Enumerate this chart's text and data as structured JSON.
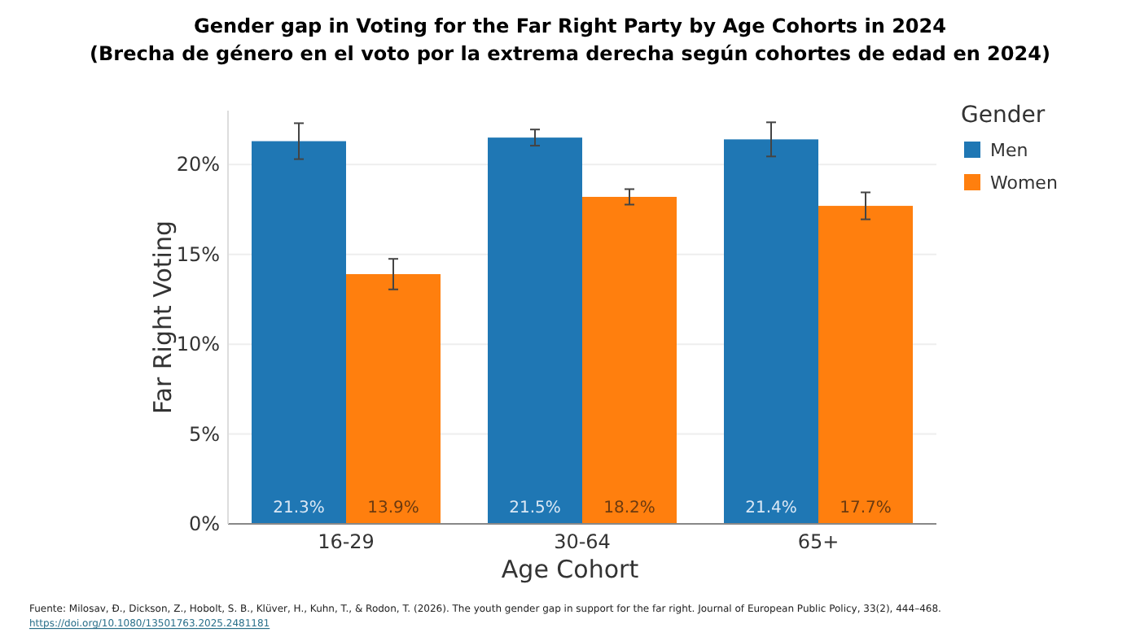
{
  "chart_data": {
    "type": "bar",
    "title": "Gender gap in Voting for the Far Right Party by Age Cohorts in 2024",
    "subtitle": "(Brecha de género en el voto por la extrema derecha según cohortes de edad en 2024)",
    "xlabel": "Age Cohort",
    "ylabel": "Far Right Voting",
    "legend_title": "Gender",
    "categories": [
      "16-29",
      "30-64",
      "65+"
    ],
    "series": [
      {
        "name": "Men",
        "color": "#1f77b4",
        "values": [
          21.3,
          21.5,
          21.4
        ],
        "value_labels": [
          "21.3%",
          "21.5%",
          "21.4%"
        ],
        "errors": [
          1.0,
          0.45,
          0.95
        ]
      },
      {
        "name": "Women",
        "color": "#ff7f0e",
        "values": [
          13.9,
          18.2,
          17.7
        ],
        "value_labels": [
          "13.9%",
          "18.2%",
          "17.7%"
        ],
        "errors": [
          0.85,
          0.43,
          0.75
        ]
      }
    ],
    "ylim": [
      0,
      23
    ],
    "yticks": [
      {
        "value": 0,
        "label": "0%"
      },
      {
        "value": 5,
        "label": "5%"
      },
      {
        "value": 10,
        "label": "10%"
      },
      {
        "value": 15,
        "label": "15%"
      },
      {
        "value": 20,
        "label": "20%"
      }
    ],
    "grid": "y",
    "legend": "right",
    "annotations": [
      "Fuente: Milosav, Đ., Dickson, Z., Hobolt, S. B., Klüver, H., Kuhn, T., & Rodon, T. (2026). The youth gender gap in support for the far right. Journal of European Public Policy, 33(2), 444–468.",
      "https://doi.org/10.1080/13501763.2025.2481181"
    ]
  }
}
